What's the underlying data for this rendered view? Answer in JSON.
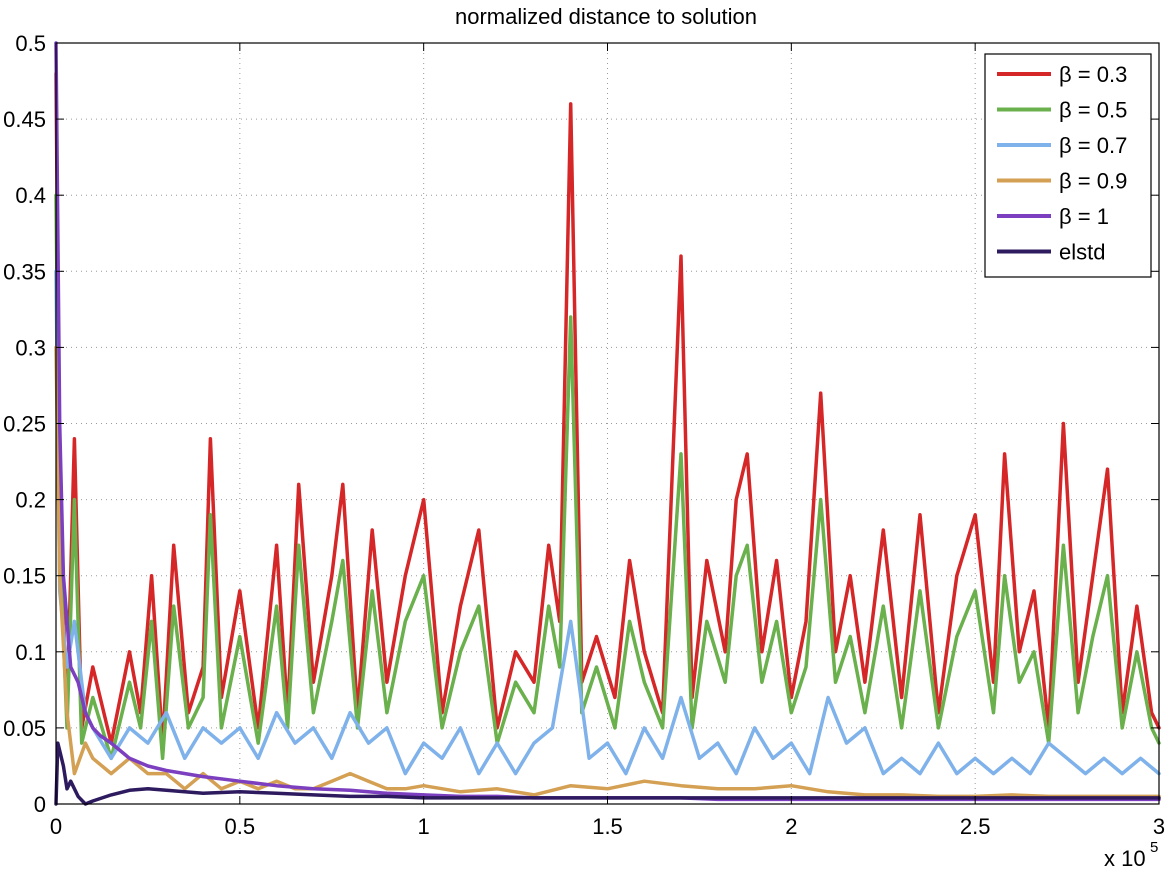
{
  "chart_data": {
    "type": "line",
    "title": "normalized distance to solution",
    "xlabel": "",
    "ylabel": "",
    "x_multiplier_label": "x 10",
    "x_multiplier_exponent": "5",
    "xlim": [
      0,
      3
    ],
    "ylim": [
      0,
      0.5
    ],
    "xticks": [
      0,
      0.5,
      1,
      1.5,
      2,
      2.5,
      3
    ],
    "xtick_labels": [
      "0",
      "0.5",
      "1",
      "1.5",
      "2",
      "2.5",
      "3"
    ],
    "yticks": [
      0,
      0.05,
      0.1,
      0.15,
      0.2,
      0.25,
      0.3,
      0.35,
      0.4,
      0.45,
      0.5
    ],
    "ytick_labels": [
      "0",
      "0.05",
      "0.1",
      "0.15",
      "0.2",
      "0.25",
      "0.3",
      "0.35",
      "0.4",
      "0.45",
      "0.5"
    ],
    "grid": true,
    "legend_position": "top-right",
    "series": [
      {
        "name": "β = 0.3",
        "color": "#d62728",
        "x": [
          0,
          0.01,
          0.03,
          0.05,
          0.07,
          0.1,
          0.15,
          0.2,
          0.23,
          0.26,
          0.29,
          0.32,
          0.36,
          0.4,
          0.42,
          0.45,
          0.5,
          0.55,
          0.6,
          0.63,
          0.66,
          0.7,
          0.75,
          0.78,
          0.82,
          0.86,
          0.9,
          0.95,
          1.0,
          1.05,
          1.1,
          1.15,
          1.2,
          1.25,
          1.3,
          1.34,
          1.37,
          1.4,
          1.43,
          1.47,
          1.52,
          1.56,
          1.6,
          1.65,
          1.7,
          1.73,
          1.77,
          1.82,
          1.85,
          1.88,
          1.92,
          1.96,
          2.0,
          2.04,
          2.08,
          2.12,
          2.16,
          2.2,
          2.25,
          2.3,
          2.35,
          2.4,
          2.45,
          2.5,
          2.55,
          2.58,
          2.62,
          2.66,
          2.7,
          2.74,
          2.78,
          2.82,
          2.86,
          2.9,
          2.94,
          2.98,
          3.0
        ],
        "values": [
          0.48,
          0.2,
          0.06,
          0.24,
          0.05,
          0.09,
          0.04,
          0.1,
          0.06,
          0.15,
          0.04,
          0.17,
          0.06,
          0.09,
          0.24,
          0.07,
          0.14,
          0.05,
          0.17,
          0.06,
          0.21,
          0.08,
          0.15,
          0.21,
          0.06,
          0.18,
          0.08,
          0.15,
          0.2,
          0.06,
          0.13,
          0.18,
          0.05,
          0.1,
          0.08,
          0.17,
          0.12,
          0.46,
          0.08,
          0.11,
          0.07,
          0.16,
          0.1,
          0.06,
          0.36,
          0.07,
          0.16,
          0.1,
          0.2,
          0.23,
          0.1,
          0.16,
          0.07,
          0.12,
          0.27,
          0.1,
          0.15,
          0.08,
          0.18,
          0.07,
          0.19,
          0.06,
          0.15,
          0.19,
          0.08,
          0.23,
          0.1,
          0.14,
          0.05,
          0.25,
          0.08,
          0.15,
          0.22,
          0.06,
          0.13,
          0.06,
          0.05
        ]
      },
      {
        "name": "β = 0.5",
        "color": "#6ab04c",
        "x": [
          0,
          0.01,
          0.03,
          0.05,
          0.07,
          0.1,
          0.15,
          0.2,
          0.23,
          0.26,
          0.29,
          0.32,
          0.36,
          0.4,
          0.42,
          0.45,
          0.5,
          0.55,
          0.6,
          0.63,
          0.66,
          0.7,
          0.75,
          0.78,
          0.82,
          0.86,
          0.9,
          0.95,
          1.0,
          1.05,
          1.1,
          1.15,
          1.2,
          1.25,
          1.3,
          1.34,
          1.37,
          1.4,
          1.43,
          1.47,
          1.52,
          1.56,
          1.6,
          1.65,
          1.7,
          1.73,
          1.77,
          1.82,
          1.85,
          1.88,
          1.92,
          1.96,
          2.0,
          2.04,
          2.08,
          2.12,
          2.16,
          2.2,
          2.25,
          2.3,
          2.35,
          2.4,
          2.45,
          2.5,
          2.55,
          2.58,
          2.62,
          2.66,
          2.7,
          2.74,
          2.78,
          2.82,
          2.86,
          2.9,
          2.94,
          2.98,
          3.0
        ],
        "values": [
          0.4,
          0.17,
          0.05,
          0.2,
          0.04,
          0.07,
          0.03,
          0.08,
          0.05,
          0.12,
          0.03,
          0.13,
          0.05,
          0.07,
          0.19,
          0.05,
          0.11,
          0.04,
          0.13,
          0.05,
          0.17,
          0.06,
          0.12,
          0.16,
          0.05,
          0.14,
          0.06,
          0.12,
          0.15,
          0.05,
          0.1,
          0.13,
          0.04,
          0.08,
          0.06,
          0.13,
          0.09,
          0.32,
          0.06,
          0.09,
          0.05,
          0.12,
          0.08,
          0.05,
          0.23,
          0.05,
          0.12,
          0.08,
          0.15,
          0.17,
          0.08,
          0.12,
          0.06,
          0.09,
          0.2,
          0.08,
          0.11,
          0.06,
          0.13,
          0.05,
          0.14,
          0.05,
          0.11,
          0.14,
          0.06,
          0.15,
          0.08,
          0.1,
          0.04,
          0.17,
          0.06,
          0.11,
          0.15,
          0.05,
          0.1,
          0.05,
          0.04
        ]
      },
      {
        "name": "β = 0.7",
        "color": "#7fb2ea",
        "x": [
          0,
          0.01,
          0.03,
          0.05,
          0.08,
          0.1,
          0.15,
          0.2,
          0.25,
          0.3,
          0.35,
          0.4,
          0.45,
          0.5,
          0.55,
          0.6,
          0.65,
          0.7,
          0.75,
          0.8,
          0.85,
          0.9,
          0.95,
          1.0,
          1.05,
          1.1,
          1.15,
          1.2,
          1.25,
          1.3,
          1.35,
          1.4,
          1.45,
          1.5,
          1.55,
          1.6,
          1.65,
          1.7,
          1.75,
          1.8,
          1.85,
          1.9,
          1.95,
          2.0,
          2.05,
          2.1,
          2.15,
          2.2,
          2.25,
          2.3,
          2.35,
          2.4,
          2.45,
          2.5,
          2.55,
          2.6,
          2.65,
          2.7,
          2.75,
          2.8,
          2.85,
          2.9,
          2.95,
          3.0
        ],
        "values": [
          0.35,
          0.14,
          0.09,
          0.12,
          0.06,
          0.05,
          0.03,
          0.05,
          0.04,
          0.06,
          0.03,
          0.05,
          0.04,
          0.05,
          0.03,
          0.06,
          0.04,
          0.05,
          0.03,
          0.06,
          0.04,
          0.05,
          0.02,
          0.04,
          0.03,
          0.05,
          0.02,
          0.04,
          0.02,
          0.04,
          0.05,
          0.12,
          0.03,
          0.04,
          0.02,
          0.05,
          0.03,
          0.07,
          0.03,
          0.04,
          0.02,
          0.05,
          0.03,
          0.04,
          0.02,
          0.07,
          0.04,
          0.05,
          0.02,
          0.03,
          0.02,
          0.04,
          0.02,
          0.03,
          0.02,
          0.03,
          0.02,
          0.04,
          0.03,
          0.02,
          0.03,
          0.02,
          0.03,
          0.02
        ]
      },
      {
        "name": "β = 0.9",
        "color": "#d4a054",
        "x": [
          0,
          0.01,
          0.03,
          0.05,
          0.08,
          0.1,
          0.15,
          0.2,
          0.25,
          0.3,
          0.35,
          0.4,
          0.45,
          0.5,
          0.55,
          0.6,
          0.65,
          0.7,
          0.75,
          0.8,
          0.85,
          0.9,
          0.95,
          1.0,
          1.1,
          1.2,
          1.3,
          1.4,
          1.5,
          1.6,
          1.7,
          1.8,
          1.9,
          2.0,
          2.1,
          2.2,
          2.3,
          2.4,
          2.5,
          2.6,
          2.7,
          2.8,
          2.9,
          3.0
        ],
        "values": [
          0.3,
          0.15,
          0.06,
          0.02,
          0.04,
          0.03,
          0.02,
          0.03,
          0.02,
          0.02,
          0.01,
          0.02,
          0.01,
          0.015,
          0.01,
          0.015,
          0.01,
          0.01,
          0.015,
          0.02,
          0.015,
          0.01,
          0.01,
          0.012,
          0.008,
          0.01,
          0.006,
          0.012,
          0.01,
          0.015,
          0.012,
          0.01,
          0.01,
          0.012,
          0.008,
          0.006,
          0.006,
          0.005,
          0.005,
          0.006,
          0.005,
          0.005,
          0.005,
          0.005
        ]
      },
      {
        "name": "β = 1",
        "color": "#7b3fbf",
        "x": [
          0,
          0.01,
          0.02,
          0.04,
          0.06,
          0.08,
          0.1,
          0.12,
          0.15,
          0.2,
          0.25,
          0.3,
          0.4,
          0.5,
          0.6,
          0.7,
          0.8,
          0.9,
          1.0,
          1.1,
          1.2,
          1.3,
          1.4,
          1.5,
          1.6,
          1.7,
          1.8,
          1.9,
          2.0,
          2.2,
          2.4,
          2.6,
          2.8,
          3.0
        ],
        "values": [
          0.5,
          0.25,
          0.15,
          0.09,
          0.08,
          0.06,
          0.05,
          0.045,
          0.04,
          0.03,
          0.025,
          0.022,
          0.018,
          0.015,
          0.012,
          0.01,
          0.009,
          0.007,
          0.006,
          0.005,
          0.005,
          0.004,
          0.004,
          0.004,
          0.004,
          0.004,
          0.003,
          0.003,
          0.003,
          0.003,
          0.003,
          0.003,
          0.003,
          0.003
        ]
      },
      {
        "name": "elstd",
        "color": "#2e1a5e",
        "x": [
          0,
          0.005,
          0.01,
          0.02,
          0.03,
          0.04,
          0.06,
          0.08,
          0.1,
          0.15,
          0.2,
          0.25,
          0.3,
          0.35,
          0.4,
          0.5,
          0.6,
          0.7,
          0.8,
          0.9,
          1.0,
          1.2,
          1.4,
          1.6,
          1.8,
          2.0,
          2.2,
          2.4,
          2.6,
          2.8,
          3.0
        ],
        "values": [
          0,
          0.04,
          0.035,
          0.025,
          0.01,
          0.015,
          0.005,
          0.0,
          0.002,
          0.006,
          0.009,
          0.01,
          0.009,
          0.008,
          0.007,
          0.008,
          0.007,
          0.006,
          0.005,
          0.005,
          0.004,
          0.004,
          0.004,
          0.004,
          0.004,
          0.004,
          0.004,
          0.004,
          0.004,
          0.004,
          0.004
        ]
      }
    ]
  }
}
